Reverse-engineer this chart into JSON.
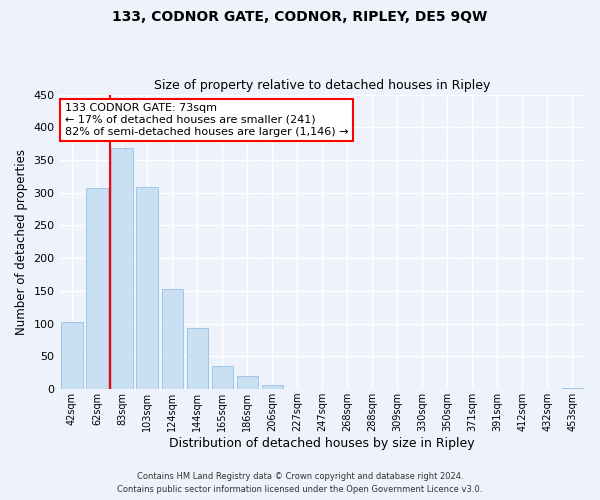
{
  "title": "133, CODNOR GATE, CODNOR, RIPLEY, DE5 9QW",
  "subtitle": "Size of property relative to detached houses in Ripley",
  "xlabel": "Distribution of detached houses by size in Ripley",
  "ylabel": "Number of detached properties",
  "bar_labels": [
    "42sqm",
    "62sqm",
    "83sqm",
    "103sqm",
    "124sqm",
    "144sqm",
    "165sqm",
    "186sqm",
    "206sqm",
    "227sqm",
    "247sqm",
    "268sqm",
    "288sqm",
    "309sqm",
    "330sqm",
    "350sqm",
    "371sqm",
    "391sqm",
    "412sqm",
    "432sqm",
    "453sqm"
  ],
  "bar_values": [
    103,
    307,
    369,
    309,
    153,
    93,
    35,
    20,
    7,
    1,
    0,
    0,
    0,
    0,
    0,
    0,
    0,
    0,
    0,
    0,
    2
  ],
  "bar_color": "#c9dff2",
  "bar_edge_color": "#a0c4e8",
  "vline_color": "red",
  "annotation_line1": "133 CODNOR GATE: 73sqm",
  "annotation_line2": "← 17% of detached houses are smaller (241)",
  "annotation_line3": "82% of semi-detached houses are larger (1,146) →",
  "annotation_box_color": "white",
  "annotation_box_edge_color": "red",
  "ylim": [
    0,
    450
  ],
  "yticks": [
    0,
    50,
    100,
    150,
    200,
    250,
    300,
    350,
    400,
    450
  ],
  "footer_line1": "Contains HM Land Registry data © Crown copyright and database right 2024.",
  "footer_line2": "Contains public sector information licensed under the Open Government Licence v3.0.",
  "background_color": "#eef2fb",
  "grid_color": "white"
}
